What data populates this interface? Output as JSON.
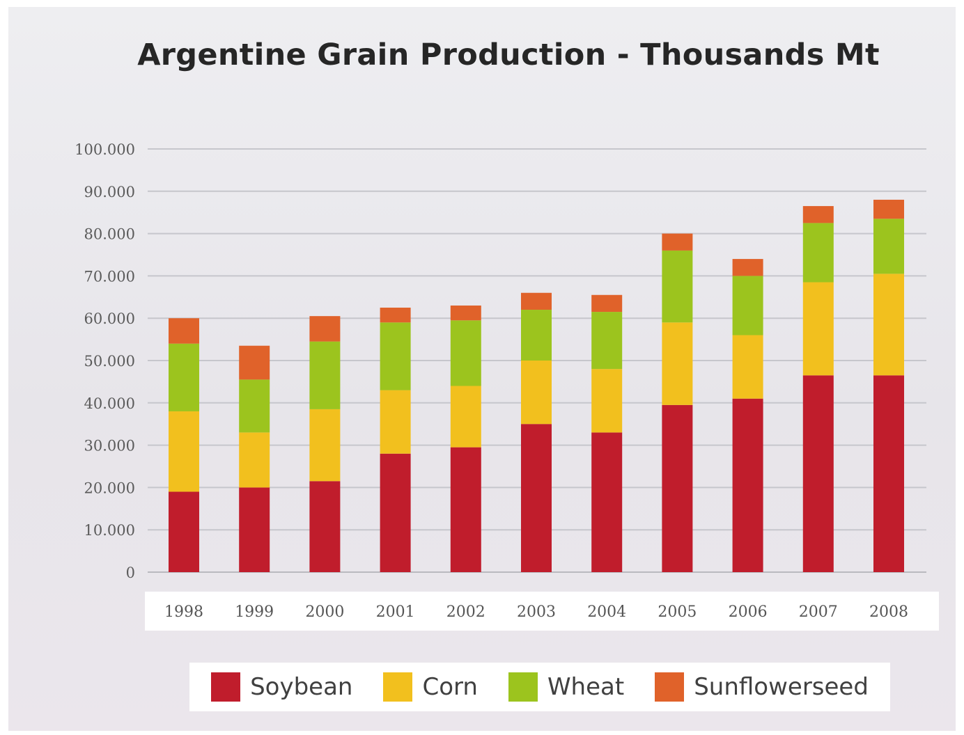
{
  "chart_data": {
    "type": "bar",
    "stacked": true,
    "title": "Argentine Grain Production  - Thousands Mt",
    "xlabel": "",
    "ylabel": "",
    "ylim": [
      0,
      100000
    ],
    "yticks": [
      0,
      10000,
      20000,
      30000,
      40000,
      50000,
      60000,
      70000,
      80000,
      90000,
      100000
    ],
    "ytick_labels": [
      "0",
      "10.000",
      "20.000",
      "30.000",
      "40.000",
      "50.000",
      "60.000",
      "70.000",
      "80.000",
      "90.000",
      "100.000"
    ],
    "categories": [
      "1998",
      "1999",
      "2000",
      "2001",
      "2002",
      "2003",
      "2004",
      "2005",
      "2006",
      "2007",
      "2008"
    ],
    "series": [
      {
        "name": "Soybean",
        "color": "#c01d2c",
        "values": [
          19000,
          20000,
          21500,
          28000,
          29500,
          35000,
          33000,
          39500,
          41000,
          46500,
          46500
        ]
      },
      {
        "name": "Corn",
        "color": "#f2c01e",
        "values": [
          19000,
          13000,
          17000,
          15000,
          14500,
          15000,
          15000,
          19500,
          15000,
          22000,
          24000
        ]
      },
      {
        "name": "Wheat",
        "color": "#9cc41e",
        "values": [
          16000,
          12500,
          16000,
          16000,
          15500,
          12000,
          13500,
          17000,
          14000,
          14000,
          13000
        ]
      },
      {
        "name": "Sunflowerseed",
        "color": "#e0622a",
        "values": [
          6000,
          8000,
          6000,
          3500,
          3500,
          4000,
          4000,
          4000,
          4000,
          4000,
          4500
        ]
      }
    ],
    "grid": true,
    "legend_position": "bottom"
  }
}
